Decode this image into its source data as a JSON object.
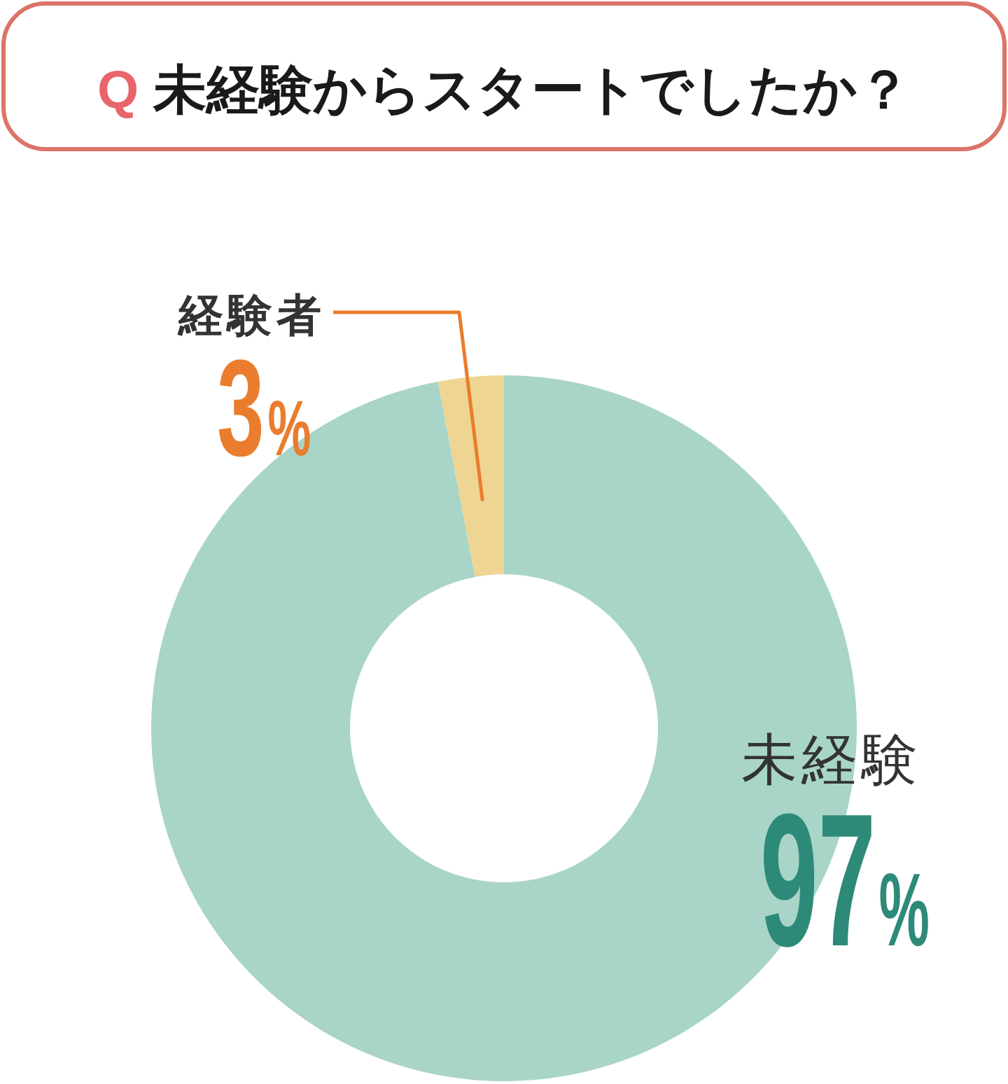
{
  "chart_data": {
    "type": "donut",
    "title": "Q 未経験からスタートでしたか？",
    "categories": [
      "未経験",
      "経験者"
    ],
    "values": [
      97,
      3
    ],
    "colors": [
      "#a8d5c7",
      "#efd593"
    ],
    "value_labels": [
      "97%",
      "3%"
    ]
  }
}
